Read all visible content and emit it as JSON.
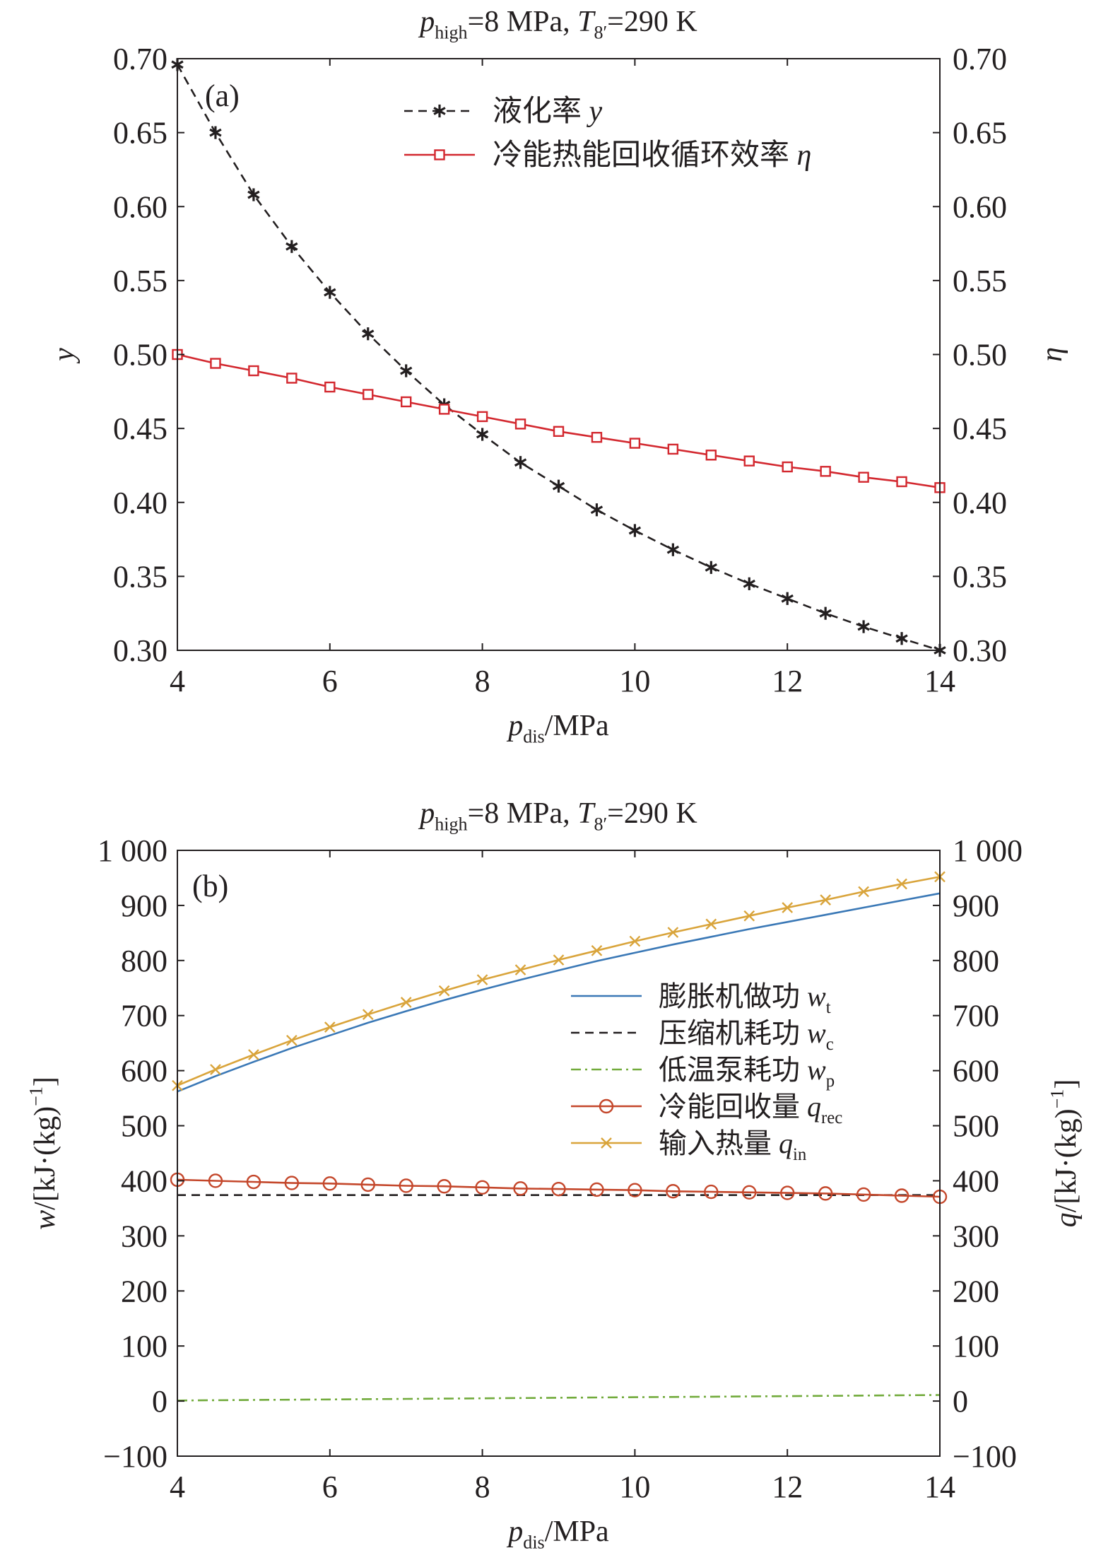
{
  "chart_data": [
    {
      "panel_label": "(a)",
      "type": "line",
      "title": {
        "parts": [
          {
            "text": "p",
            "italic": true
          },
          {
            "text": "high",
            "sub": true
          },
          {
            "text": "=8 MPa, "
          },
          {
            "text": "T",
            "italic": true
          },
          {
            "text": "8′",
            "sub": true
          },
          {
            "text": "=290 K"
          }
        ]
      },
      "xlabel": {
        "parts": [
          {
            "text": "p",
            "italic": true
          },
          {
            "text": "dis",
            "sub": true
          },
          {
            "text": "/MPa"
          }
        ]
      },
      "ylabel": {
        "parts": [
          {
            "text": "y",
            "italic": true
          }
        ]
      },
      "y2label": {
        "parts": [
          {
            "text": "η",
            "italic": true
          }
        ]
      },
      "xlim": [
        4,
        14
      ],
      "ylim": [
        0.3,
        0.7
      ],
      "y2lim": [
        0.3,
        0.7
      ],
      "xticks": [
        "4",
        "6",
        "8",
        "10",
        "12",
        "14"
      ],
      "xtick_values": [
        4,
        6,
        8,
        10,
        12,
        14
      ],
      "yticks": [
        "0.30",
        "0.35",
        "0.40",
        "0.45",
        "0.50",
        "0.55",
        "0.60",
        "0.65",
        "0.70"
      ],
      "ytick_values": [
        0.3,
        0.35,
        0.4,
        0.45,
        0.5,
        0.55,
        0.6,
        0.65,
        0.7
      ],
      "y2ticks": [
        "0.30",
        "0.35",
        "0.40",
        "0.45",
        "0.50",
        "0.55",
        "0.60",
        "0.65",
        "0.70"
      ],
      "y2tick_values": [
        0.3,
        0.35,
        0.4,
        0.45,
        0.5,
        0.55,
        0.6,
        0.65,
        0.7
      ],
      "legend_position": "top-right",
      "grid": false,
      "series": [
        {
          "name": "液化率 y",
          "legend": {
            "parts": [
              {
                "text": "液化率 "
              },
              {
                "text": "y",
                "italic": true
              }
            ]
          },
          "color": "#231f20",
          "line_style": "dashed",
          "marker": "asterisk",
          "axis": "left",
          "x": [
            4,
            4.5,
            5,
            5.5,
            6,
            6.5,
            7,
            7.5,
            8,
            8.5,
            9,
            9.5,
            10,
            10.5,
            11,
            11.5,
            12,
            12.5,
            13,
            13.5,
            14
          ],
          "values": [
            0.696,
            0.65,
            0.608,
            0.573,
            0.542,
            0.514,
            0.489,
            0.466,
            0.446,
            0.427,
            0.411,
            0.395,
            0.381,
            0.368,
            0.356,
            0.345,
            0.335,
            0.325,
            0.316,
            0.308,
            0.3
          ]
        },
        {
          "name": "冷能热能回收循环效率 η",
          "legend": {
            "parts": [
              {
                "text": "冷能热能回收循环效率 "
              },
              {
                "text": "η",
                "italic": true
              }
            ]
          },
          "color": "#d3282f",
          "line_style": "solid",
          "marker": "square",
          "axis": "right",
          "x": [
            4,
            4.5,
            5,
            5.5,
            6,
            6.5,
            7,
            7.5,
            8,
            8.5,
            9,
            9.5,
            10,
            10.5,
            11,
            11.5,
            12,
            12.5,
            13,
            13.5,
            14
          ],
          "values": [
            0.5,
            0.494,
            0.489,
            0.484,
            0.478,
            0.473,
            0.468,
            0.463,
            0.458,
            0.453,
            0.448,
            0.444,
            0.44,
            0.436,
            0.432,
            0.428,
            0.424,
            0.421,
            0.417,
            0.414,
            0.41
          ]
        }
      ]
    },
    {
      "panel_label": "(b)",
      "type": "line",
      "title": {
        "parts": [
          {
            "text": "p",
            "italic": true
          },
          {
            "text": "high",
            "sub": true
          },
          {
            "text": "=8 MPa, "
          },
          {
            "text": "T",
            "italic": true
          },
          {
            "text": "8′",
            "sub": true
          },
          {
            "text": "=290 K"
          }
        ]
      },
      "xlabel": {
        "parts": [
          {
            "text": "p",
            "italic": true
          },
          {
            "text": "dis",
            "sub": true
          },
          {
            "text": "/MPa"
          }
        ]
      },
      "ylabel": {
        "parts": [
          {
            "text": "w",
            "italic": true
          },
          {
            "text": "/[kJ·(kg)"
          },
          {
            "text": "−1",
            "sup": true
          },
          {
            "text": "]"
          }
        ]
      },
      "y2label": {
        "parts": [
          {
            "text": "q",
            "italic": true
          },
          {
            "text": "/[kJ·(kg)"
          },
          {
            "text": "−1",
            "sup": true
          },
          {
            "text": "]"
          }
        ]
      },
      "xlim": [
        4,
        14
      ],
      "ylim": [
        -100,
        1000
      ],
      "y2lim": [
        -100,
        1000
      ],
      "xticks": [
        "4",
        "6",
        "8",
        "10",
        "12",
        "14"
      ],
      "xtick_values": [
        4,
        6,
        8,
        10,
        12,
        14
      ],
      "yticks": [
        "−100",
        "0",
        "100",
        "200",
        "300",
        "400",
        "500",
        "600",
        "700",
        "800",
        "900",
        "1 000"
      ],
      "ytick_values": [
        -100,
        0,
        100,
        200,
        300,
        400,
        500,
        600,
        700,
        800,
        900,
        1000
      ],
      "y2ticks": [
        "−100",
        "0",
        "100",
        "200",
        "300",
        "400",
        "500",
        "600",
        "700",
        "800",
        "900",
        "1 000"
      ],
      "y2tick_values": [
        -100,
        0,
        100,
        200,
        300,
        400,
        500,
        600,
        700,
        800,
        900,
        1000
      ],
      "legend_position": "right",
      "grid": false,
      "series": [
        {
          "name": "膨胀机做功 wt",
          "legend": {
            "parts": [
              {
                "text": "膨胀机做功 "
              },
              {
                "text": "w",
                "italic": true
              },
              {
                "text": "t",
                "sub": true
              }
            ]
          },
          "color": "#3a78b6",
          "line_style": "solid",
          "marker": "none",
          "axis": "left",
          "x": [
            4,
            4.5,
            5,
            5.5,
            6,
            6.5,
            7,
            7.5,
            8,
            8.5,
            9,
            9.5,
            10,
            10.5,
            11,
            11.5,
            12,
            12.5,
            13,
            13.5,
            14
          ],
          "values": [
            562,
            590,
            616,
            641,
            664,
            687,
            708,
            728,
            747,
            765,
            782,
            799,
            814,
            829,
            843,
            857,
            870,
            883,
            896,
            909,
            922
          ]
        },
        {
          "name": "压缩机耗功 wc",
          "legend": {
            "parts": [
              {
                "text": "压缩机耗功 "
              },
              {
                "text": "w",
                "italic": true
              },
              {
                "text": "c",
                "sub": true
              }
            ]
          },
          "color": "#231f20",
          "line_style": "dashed",
          "marker": "none",
          "axis": "left",
          "x": [
            4,
            14
          ],
          "values": [
            374,
            374
          ]
        },
        {
          "name": "低温泵耗功 wp",
          "legend": {
            "parts": [
              {
                "text": "低温泵耗功 "
              },
              {
                "text": "w",
                "italic": true
              },
              {
                "text": "p",
                "sub": true
              }
            ]
          },
          "color": "#72ab3c",
          "line_style": "dashdot",
          "marker": "none",
          "axis": "left",
          "x": [
            4,
            5,
            6,
            7,
            8,
            9,
            10,
            11,
            12,
            13,
            14
          ],
          "values": [
            1,
            2,
            3,
            4,
            5,
            6,
            7,
            8,
            9,
            10,
            11
          ]
        },
        {
          "name": "冷能回收量 qrec",
          "legend": {
            "parts": [
              {
                "text": "冷能回收量 "
              },
              {
                "text": "q",
                "italic": true
              },
              {
                "text": "rec",
                "sub": true
              }
            ]
          },
          "color": "#c4472b",
          "line_style": "solid",
          "marker": "circle",
          "axis": "right",
          "x": [
            4,
            4.5,
            5,
            5.5,
            6,
            6.5,
            7,
            7.5,
            8,
            8.5,
            9,
            9.5,
            10,
            10.5,
            11,
            11.5,
            12,
            12.5,
            13,
            13.5,
            14
          ],
          "values": [
            402,
            400,
            398,
            396,
            395,
            393,
            391,
            390,
            388,
            386,
            385,
            384,
            383,
            381,
            380,
            379,
            378,
            377,
            375,
            373,
            371
          ]
        },
        {
          "name": "输入热量 qin",
          "legend": {
            "parts": [
              {
                "text": "输入热量 "
              },
              {
                "text": "q",
                "italic": true
              },
              {
                "text": "in",
                "sub": true
              }
            ]
          },
          "color": "#d9a43b",
          "line_style": "solid",
          "marker": "x",
          "axis": "right",
          "x": [
            4,
            4.5,
            5,
            5.5,
            6,
            6.5,
            7,
            7.5,
            8,
            8.5,
            9,
            9.5,
            10,
            10.5,
            11,
            11.5,
            12,
            12.5,
            13,
            13.5,
            14
          ],
          "values": [
            573,
            602,
            629,
            655,
            679,
            702,
            724,
            745,
            765,
            783,
            801,
            818,
            835,
            851,
            866,
            881,
            896,
            910,
            925,
            939,
            952
          ]
        }
      ]
    }
  ]
}
